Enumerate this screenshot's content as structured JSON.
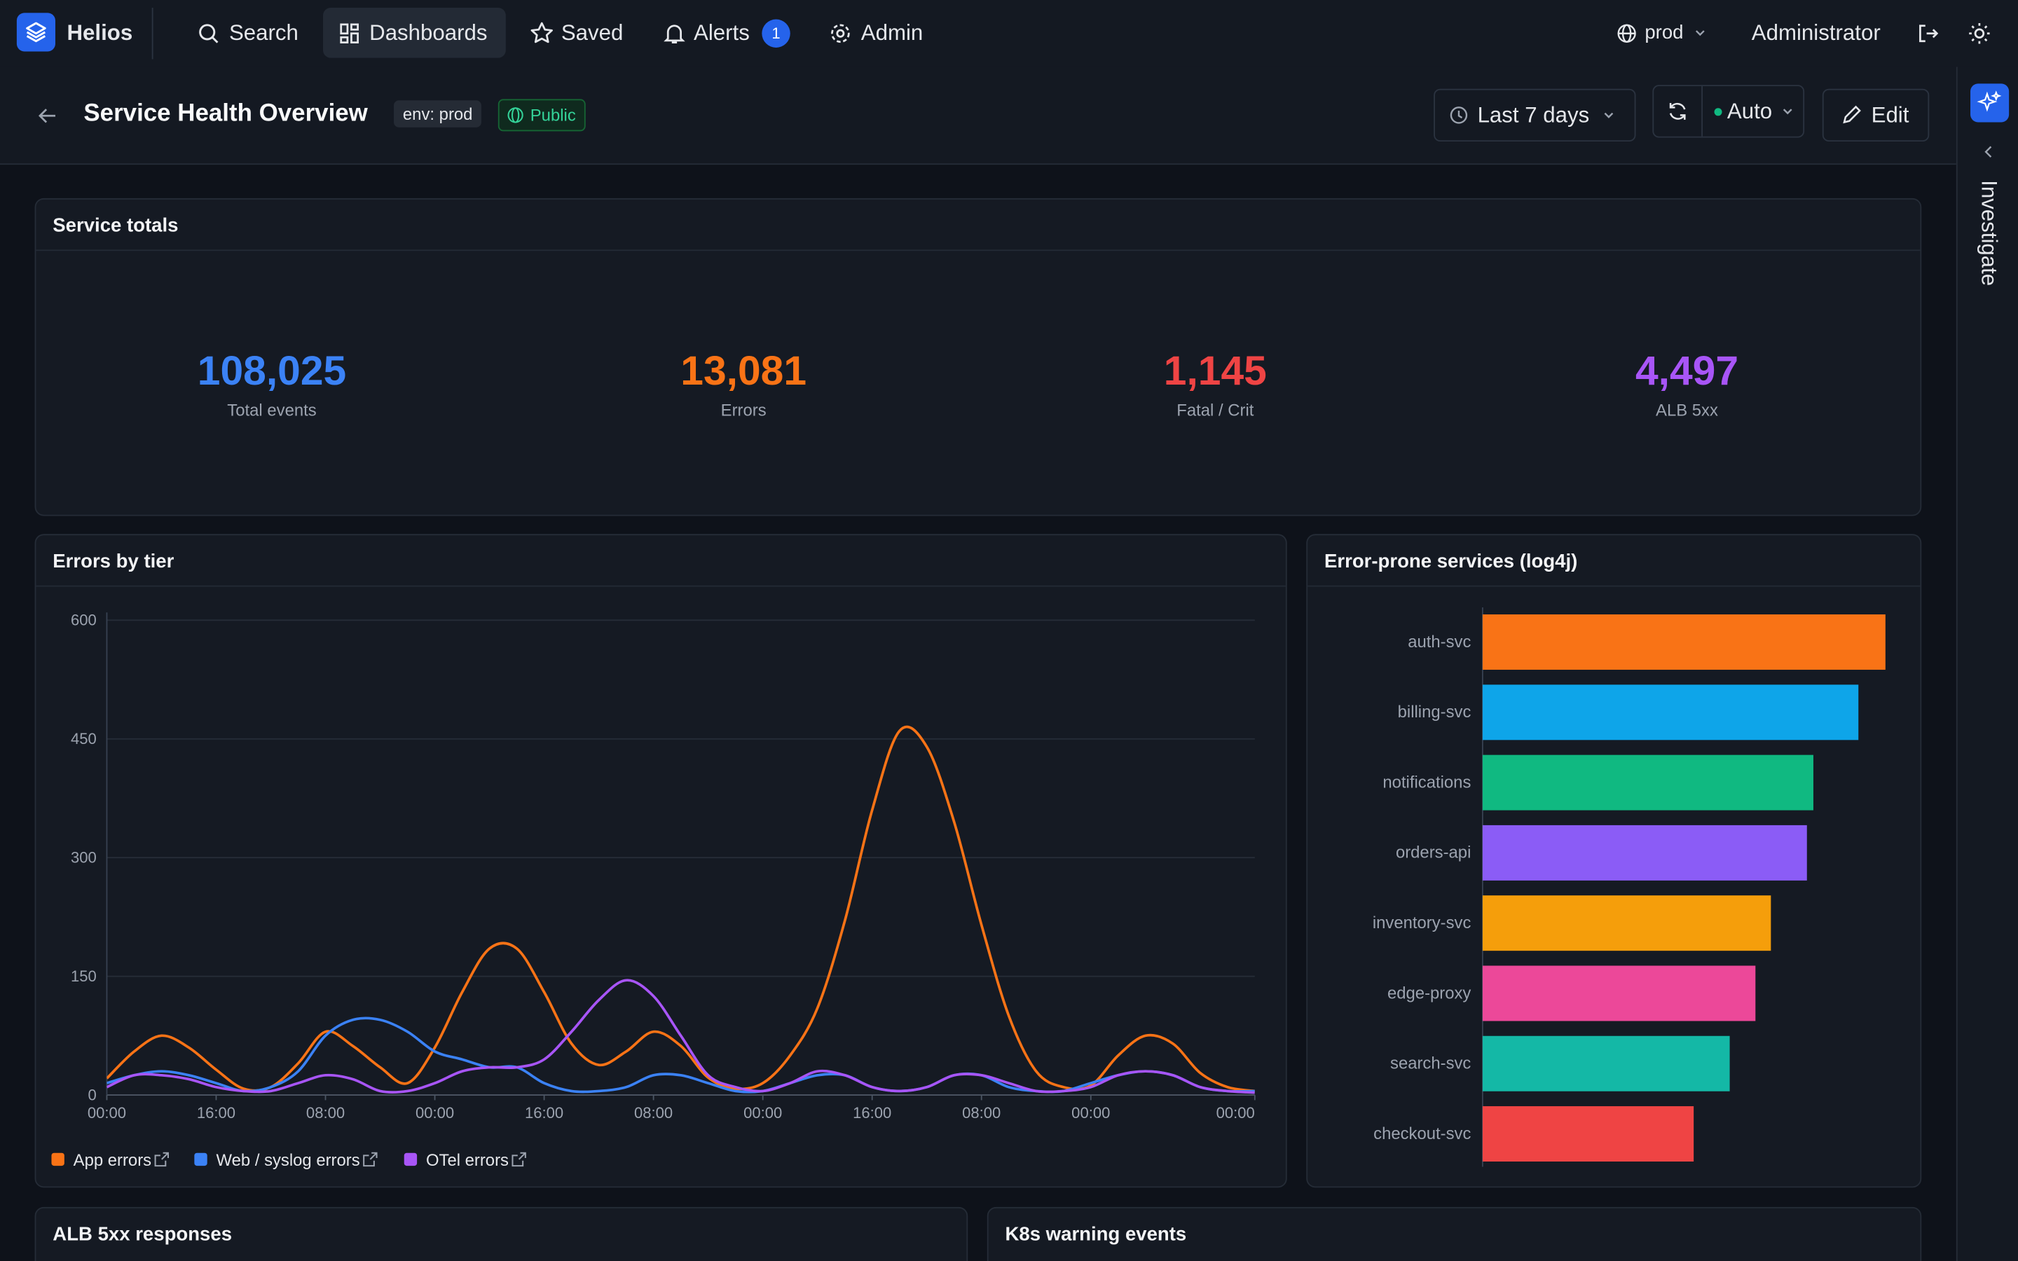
{
  "nav": {
    "brand": "Helios",
    "items": [
      "Search",
      "Dashboards",
      "Saved",
      "Alerts",
      "Admin"
    ],
    "alerts_badge": "1",
    "environment": "prod",
    "user": "Administrator"
  },
  "header": {
    "title": "Service Health Overview",
    "tags": [
      "env: prod",
      "Public"
    ],
    "time_range": "Last 7 days",
    "refresh": "Auto",
    "edit": "Edit"
  },
  "sidebar": {
    "label": "Investigate"
  },
  "stats": {
    "title": "Service totals",
    "items": [
      {
        "value": "108,025",
        "label": "Total events",
        "color": "#3b82f6"
      },
      {
        "value": "13,081",
        "label": "Errors",
        "color": "#f97316"
      },
      {
        "value": "1,145",
        "label": "Fatal / Crit",
        "color": "#ef4444"
      },
      {
        "value": "4,497",
        "label": "ALB 5xx",
        "color": "#a855f7"
      }
    ]
  },
  "chart_data": [
    {
      "type": "line",
      "title": "Errors by tier",
      "x": [
        0,
        4,
        8,
        12,
        16,
        20,
        24,
        28,
        32,
        36,
        40,
        44,
        48,
        52,
        56,
        60,
        64,
        68,
        72,
        76,
        80,
        84,
        88,
        92,
        96,
        100,
        104,
        108,
        112,
        116,
        120,
        124,
        128,
        132,
        136,
        140,
        144,
        148,
        152,
        156,
        160,
        164,
        168
      ],
      "xlim": [
        0,
        168
      ],
      "xticks": [
        {
          "value": 0,
          "label": "00:00"
        },
        {
          "value": 16,
          "label": "16:00"
        },
        {
          "value": 32,
          "label": "08:00"
        },
        {
          "value": 48,
          "label": "00:00"
        },
        {
          "value": 64,
          "label": "16:00"
        },
        {
          "value": 80,
          "label": "08:00"
        },
        {
          "value": 96,
          "label": "00:00"
        },
        {
          "value": 112,
          "label": "16:00"
        },
        {
          "value": 128,
          "label": "08:00"
        },
        {
          "value": 144,
          "label": "00:00"
        },
        {
          "value": 168,
          "label": "00:00"
        }
      ],
      "ylim": [
        0,
        600
      ],
      "yticks": [
        0,
        150,
        300,
        450,
        600
      ],
      "grid": true,
      "series": [
        {
          "name": "App errors",
          "color": "#f97316",
          "values": [
            21,
            55,
            75,
            60,
            32,
            8,
            10,
            40,
            80,
            62,
            35,
            15,
            60,
            130,
            185,
            185,
            130,
            65,
            38,
            55,
            80,
            62,
            22,
            8,
            15,
            50,
            110,
            220,
            360,
            460,
            440,
            345,
            215,
            100,
            30,
            10,
            12,
            50,
            75,
            65,
            28,
            10,
            5
          ]
        },
        {
          "name": "Web / syslog errors",
          "color": "#3b82f6",
          "values": [
            15,
            25,
            30,
            25,
            15,
            5,
            10,
            30,
            75,
            95,
            95,
            80,
            55,
            45,
            35,
            35,
            15,
            5,
            5,
            10,
            25,
            25,
            15,
            5,
            5,
            15,
            25,
            25,
            10,
            5,
            10,
            25,
            25,
            10,
            5,
            5,
            15,
            25,
            30,
            25,
            10,
            5,
            5
          ]
        },
        {
          "name": "OTel errors",
          "color": "#a855f7",
          "values": [
            10,
            25,
            25,
            20,
            10,
            5,
            5,
            15,
            25,
            20,
            5,
            5,
            15,
            30,
            35,
            35,
            45,
            80,
            120,
            145,
            125,
            75,
            25,
            10,
            5,
            15,
            30,
            25,
            10,
            5,
            10,
            25,
            25,
            15,
            5,
            5,
            10,
            25,
            30,
            25,
            10,
            5,
            3
          ]
        }
      ]
    },
    {
      "type": "bar",
      "orientation": "horizontal",
      "title": "Error-prone services (log4j)",
      "categories": [
        "auth-svc",
        "billing-svc",
        "notifications",
        "orders-api",
        "inventory-svc",
        "edge-proxy",
        "search-svc",
        "checkout-svc"
      ],
      "values": [
        313,
        292,
        257,
        252,
        224,
        212,
        192,
        164
      ],
      "colors": [
        "#f97316",
        "#0ea5e9",
        "#10b981",
        "#8b5cf6",
        "#f59e0b",
        "#ec4899",
        "#14b8a6",
        "#ef4444"
      ],
      "xlim": [
        0,
        320
      ]
    }
  ],
  "panels": [
    "ALB 5xx responses",
    "K8s warning events"
  ]
}
